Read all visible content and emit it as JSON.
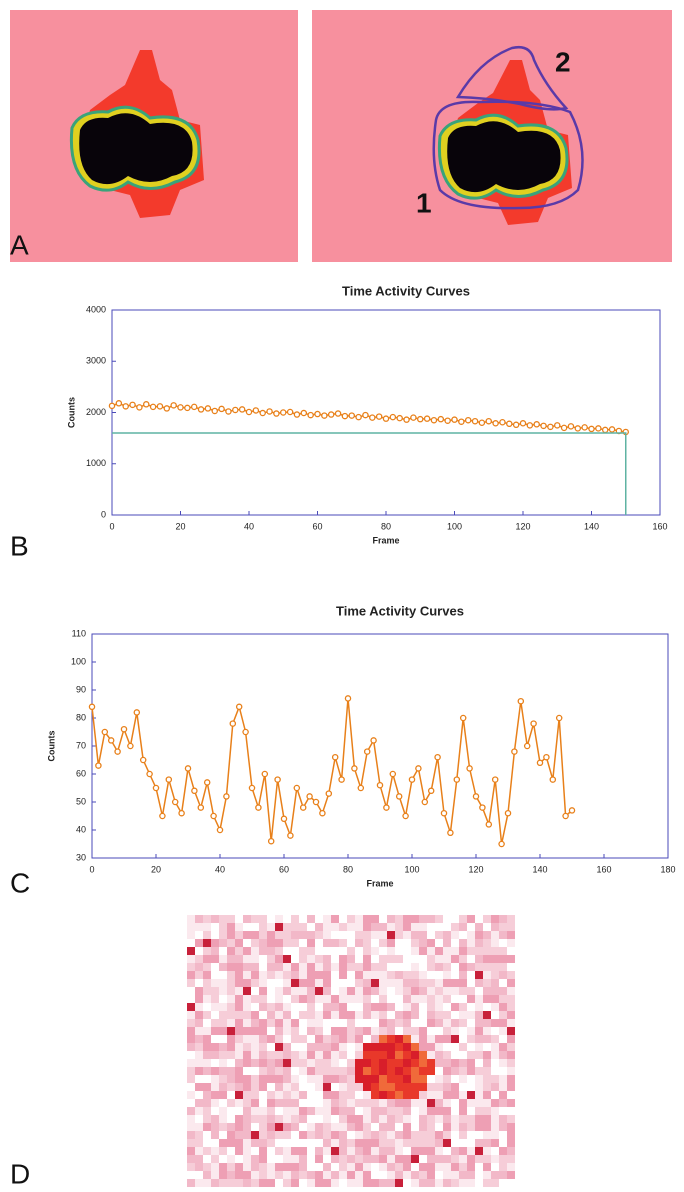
{
  "panel_labels": [
    "A",
    "B",
    "C",
    "D"
  ],
  "roi_labels": [
    "1",
    "2"
  ],
  "chart_data": [
    {
      "type": "line",
      "title": "Time Activity Curves",
      "xlabel": "Frame",
      "ylabel": "Counts",
      "xlim": [
        0,
        160
      ],
      "ylim": [
        0,
        4000
      ],
      "xticks": [
        0,
        20,
        40,
        60,
        80,
        100,
        120,
        140,
        160
      ],
      "yticks": [
        0,
        1000,
        2000,
        3000,
        4000
      ],
      "series": [
        {
          "color": "#e8801a",
          "marker": "circle",
          "x": [
            0,
            2,
            4,
            6,
            8,
            10,
            12,
            14,
            16,
            18,
            20,
            22,
            24,
            26,
            28,
            30,
            32,
            34,
            36,
            38,
            40,
            42,
            44,
            46,
            48,
            50,
            52,
            54,
            56,
            58,
            60,
            62,
            64,
            66,
            68,
            70,
            72,
            74,
            76,
            78,
            80,
            82,
            84,
            86,
            88,
            90,
            92,
            94,
            96,
            98,
            100,
            102,
            104,
            106,
            108,
            110,
            112,
            114,
            116,
            118,
            120,
            122,
            124,
            126,
            128,
            130,
            132,
            134,
            136,
            138,
            140,
            142,
            144,
            146,
            148,
            150
          ],
          "values": [
            2130,
            2180,
            2120,
            2150,
            2100,
            2160,
            2110,
            2120,
            2080,
            2140,
            2100,
            2090,
            2110,
            2060,
            2080,
            2030,
            2070,
            2020,
            2050,
            2060,
            2010,
            2040,
            1990,
            2020,
            1980,
            2000,
            2010,
            1960,
            1990,
            1950,
            1970,
            1940,
            1960,
            1980,
            1930,
            1940,
            1910,
            1950,
            1900,
            1920,
            1880,
            1910,
            1890,
            1860,
            1900,
            1870,
            1880,
            1850,
            1870,
            1840,
            1860,
            1820,
            1850,
            1830,
            1800,
            1830,
            1790,
            1810,
            1780,
            1760,
            1790,
            1750,
            1770,
            1740,
            1720,
            1750,
            1700,
            1730,
            1690,
            1710,
            1680,
            1690,
            1660,
            1670,
            1640,
            1620
          ]
        },
        {
          "color": "#5fb3a3",
          "marker": "none",
          "x": [
            0,
            150,
            150
          ],
          "values": [
            1600,
            1600,
            0
          ]
        }
      ]
    },
    {
      "type": "line",
      "title": "Time Activity Curves",
      "xlabel": "Frame",
      "ylabel": "Counts",
      "xlim": [
        0,
        180
      ],
      "ylim": [
        30,
        110
      ],
      "xticks": [
        0,
        20,
        40,
        60,
        80,
        100,
        120,
        140,
        160,
        180
      ],
      "yticks": [
        30,
        40,
        50,
        60,
        70,
        80,
        90,
        100,
        110
      ],
      "series": [
        {
          "color": "#e8801a",
          "marker": "circle",
          "x": [
            0,
            2,
            4,
            6,
            8,
            10,
            12,
            14,
            16,
            18,
            20,
            22,
            24,
            26,
            28,
            30,
            32,
            34,
            36,
            38,
            40,
            42,
            44,
            46,
            48,
            50,
            52,
            54,
            56,
            58,
            60,
            62,
            64,
            66,
            68,
            70,
            72,
            74,
            76,
            78,
            80,
            82,
            84,
            86,
            88,
            90,
            92,
            94,
            96,
            98,
            100,
            102,
            104,
            106,
            108,
            110,
            112,
            114,
            116,
            118,
            120,
            122,
            124,
            126,
            128,
            130,
            132,
            134,
            136,
            138,
            140,
            142,
            144,
            146,
            148,
            150
          ],
          "values": [
            84,
            63,
            75,
            72,
            68,
            76,
            70,
            82,
            65,
            60,
            55,
            45,
            58,
            50,
            46,
            62,
            54,
            48,
            57,
            45,
            40,
            52,
            78,
            84,
            75,
            55,
            48,
            60,
            36,
            58,
            44,
            38,
            55,
            48,
            52,
            50,
            46,
            53,
            66,
            58,
            87,
            62,
            55,
            68,
            72,
            56,
            48,
            60,
            52,
            45,
            58,
            62,
            50,
            54,
            66,
            46,
            39,
            58,
            80,
            62,
            52,
            48,
            42,
            58,
            35,
            46,
            68,
            86,
            70,
            78,
            64,
            66,
            58,
            80,
            45,
            47
          ]
        }
      ]
    }
  ]
}
